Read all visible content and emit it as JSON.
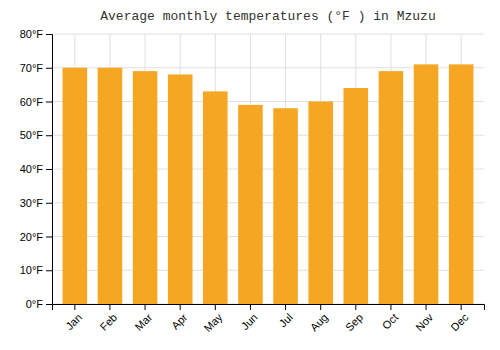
{
  "chart_data": {
    "type": "bar",
    "title": "Average monthly temperatures (°F ) in Mzuzu",
    "categories": [
      "Jan",
      "Feb",
      "Mar",
      "Apr",
      "May",
      "Jun",
      "Jul",
      "Aug",
      "Sep",
      "Oct",
      "Nov",
      "Dec"
    ],
    "values": [
      70,
      70,
      69,
      68,
      63,
      59,
      58,
      60,
      64,
      69,
      71,
      71
    ],
    "color": "#F5A623",
    "ylim": [
      0,
      80
    ],
    "yticks": [
      {
        "value": 0,
        "label": "0°F"
      },
      {
        "value": 10,
        "label": "10°F"
      },
      {
        "value": 20,
        "label": "20°F"
      },
      {
        "value": 30,
        "label": "30°F"
      },
      {
        "value": 40,
        "label": "40°F"
      },
      {
        "value": 50,
        "label": "50°F"
      },
      {
        "value": 60,
        "label": "60°F"
      },
      {
        "value": 70,
        "label": "70°F"
      },
      {
        "value": 80,
        "label": "80°F"
      }
    ],
    "grid": true
  }
}
